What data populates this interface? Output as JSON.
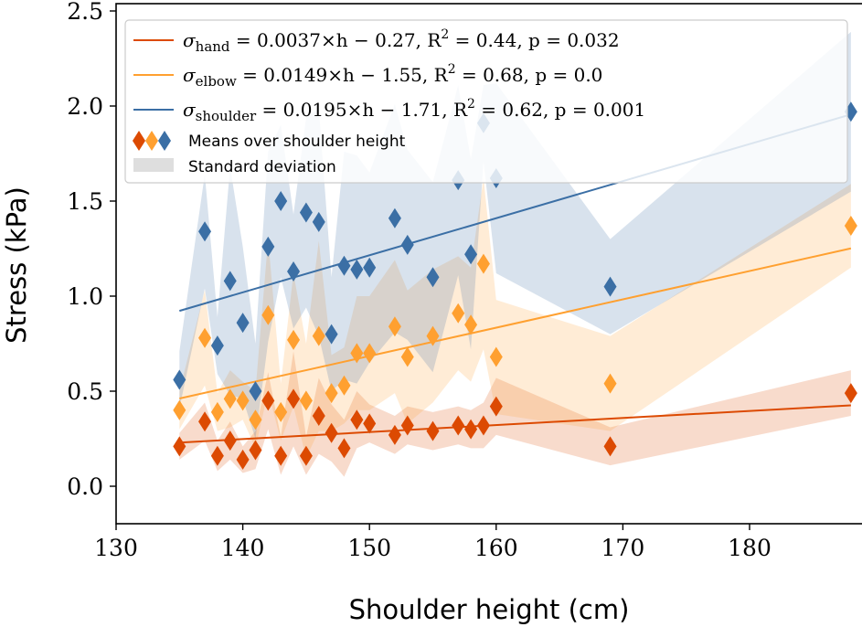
{
  "chart_data": {
    "type": "scatter",
    "xlabel": "Shoulder height (cm)",
    "ylabel": "Stress (kPa)",
    "xlim": [
      130,
      189
    ],
    "ylim": [
      -0.2,
      2.55
    ],
    "xticks": [
      "130",
      "140",
      "150",
      "160",
      "170",
      "180"
    ],
    "yticks": [
      "0.0",
      "0.5",
      "1.0",
      "1.5",
      "2.0",
      "2.5"
    ],
    "grid": false,
    "legend_position": "top",
    "x": [
      135,
      137,
      138,
      139,
      140,
      141,
      142,
      143,
      144,
      145,
      146,
      147,
      148,
      149,
      150,
      152,
      153,
      155,
      157,
      158,
      159,
      160,
      169,
      188
    ],
    "series": [
      {
        "key": "hand",
        "color": "#dc4a02",
        "means": [
          0.21,
          0.34,
          0.16,
          0.24,
          0.14,
          0.19,
          0.45,
          0.16,
          0.46,
          0.16,
          0.37,
          0.28,
          0.2,
          0.35,
          0.33,
          0.27,
          0.32,
          0.29,
          0.32,
          0.3,
          0.32,
          0.42,
          0.21,
          0.49
        ],
        "std": [
          0.07,
          0.1,
          0.08,
          0.1,
          0.07,
          0.1,
          0.15,
          0.1,
          0.25,
          0.1,
          0.2,
          0.15,
          0.15,
          0.15,
          0.1,
          0.1,
          0.1,
          0.1,
          0.1,
          0.1,
          0.12,
          0.15,
          0.1,
          0.12
        ],
        "fit": {
          "slope": 0.0037,
          "intercept": -0.27
        },
        "legend": {
          "symbol": "σ",
          "sub": "hand",
          "rest": " = 0.0037×h − 0.27, R",
          "sup": "2",
          "tail": " = 0.44, p = 0.032"
        }
      },
      {
        "key": "elbow",
        "color": "#ffa030",
        "means": [
          0.4,
          0.78,
          0.39,
          0.46,
          0.45,
          0.35,
          0.9,
          0.39,
          0.77,
          0.45,
          0.79,
          0.49,
          0.53,
          0.7,
          0.7,
          0.84,
          0.68,
          0.79,
          0.91,
          0.85,
          1.17,
          0.68,
          0.54,
          1.37
        ],
        "std": [
          0.1,
          0.25,
          0.1,
          0.15,
          0.1,
          0.15,
          0.4,
          0.15,
          0.35,
          0.3,
          0.5,
          0.2,
          0.2,
          0.3,
          0.3,
          0.35,
          0.35,
          0.35,
          0.3,
          0.3,
          0.45,
          0.3,
          0.25,
          0.22
        ],
        "fit": {
          "slope": 0.0149,
          "intercept": -1.55
        },
        "legend": {
          "symbol": "σ",
          "sub": "elbow",
          "rest": " = 0.0149×h − 1.55, R",
          "sup": "2",
          "tail": " = 0.68, p = 0.0"
        }
      },
      {
        "key": "shoulder",
        "color": "#3b6fa5",
        "means": [
          0.56,
          1.34,
          0.74,
          1.08,
          0.86,
          0.5,
          1.26,
          1.5,
          1.13,
          1.44,
          1.39,
          0.8,
          1.16,
          1.14,
          1.15,
          1.41,
          1.27,
          1.1,
          1.61,
          1.22,
          1.91,
          1.62,
          1.05,
          1.97
        ],
        "std": [
          0.15,
          0.3,
          0.15,
          0.6,
          0.4,
          0.25,
          0.5,
          0.4,
          0.3,
          0.5,
          0.6,
          0.3,
          0.6,
          0.6,
          0.5,
          0.6,
          0.5,
          0.5,
          0.5,
          0.5,
          0.2,
          0.5,
          0.25,
          0.42
        ],
        "fit": {
          "slope": 0.0195,
          "intercept": -1.71
        },
        "legend": {
          "symbol": "σ",
          "sub": "shoulder",
          "rest": " = 0.0195×h − 1.71, R",
          "sup": "2",
          "tail": " = 0.62, p = 0.001"
        }
      }
    ],
    "legend_extra": {
      "means": "Means over shoulder height",
      "std": "Standard deviation"
    }
  }
}
